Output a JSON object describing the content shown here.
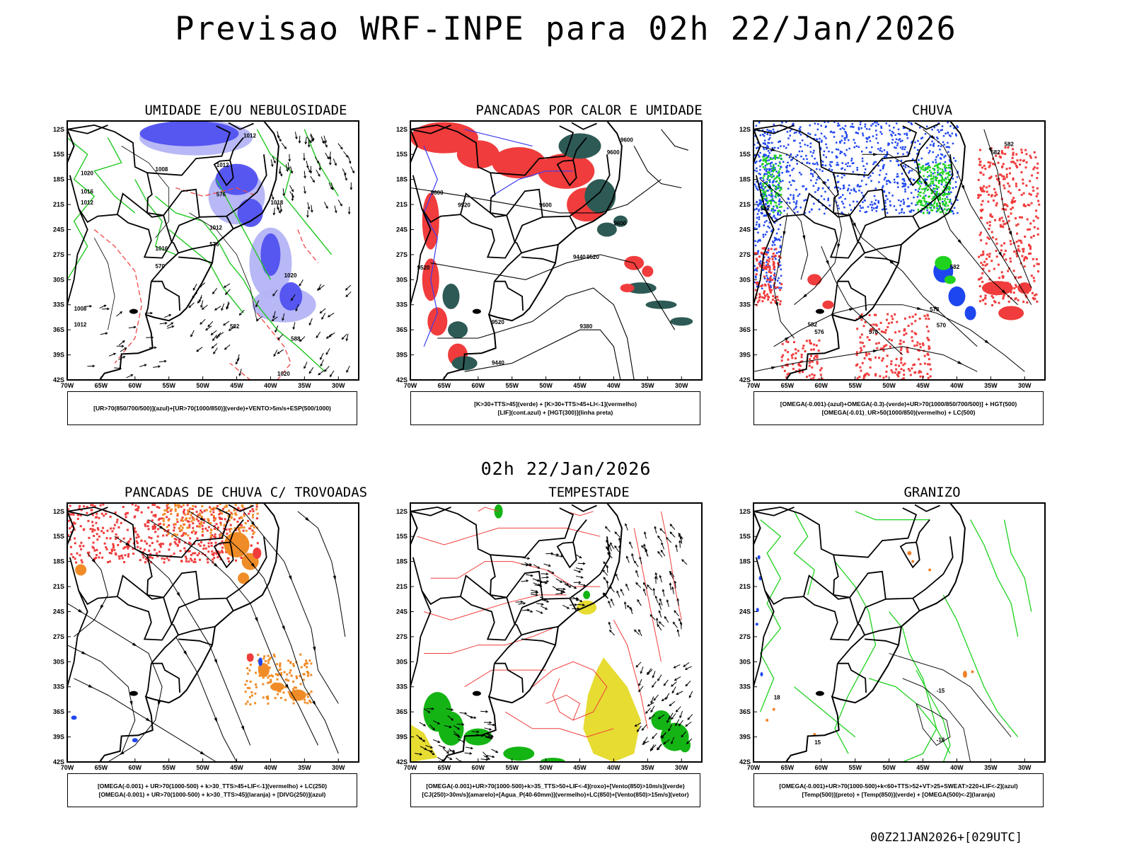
{
  "title": "Previsao WRF-INPE  para 02h 22/Jan/2026",
  "middle_label": "02h 22/Jan/2026",
  "footer": "00Z21JAN2026+[029UTC]",
  "axes": {
    "lat_ticks": [
      "12S",
      "15S",
      "18S",
      "21S",
      "24S",
      "27S",
      "30S",
      "33S",
      "36S",
      "39S",
      "42S"
    ],
    "lon_ticks": [
      "70W",
      "65W",
      "60W",
      "55W",
      "50W",
      "45W",
      "40W",
      "35W",
      "30W"
    ]
  },
  "panels": [
    {
      "title": "UMIDADE E/OU NEBULOSIDADE",
      "legend": [
        "[UR>70(850/700/500)](azul)+[UR>70(1000/850)](verde)+VENTO>5m/s+ESP(500/1000)"
      ],
      "labels": [
        "1012",
        "1008",
        "1012",
        "1020",
        "1016",
        "1012",
        "1012",
        "1018",
        "1016",
        "1020",
        "1008",
        "1012",
        "1020",
        "576",
        "576",
        "570",
        "582",
        "588"
      ],
      "colors": {
        "fill": "#5050f0",
        "light": "#b4b4f5",
        "contour": "#22c822",
        "dashed": "#f04646"
      }
    },
    {
      "title": "PANCADAS POR CALOR E UMIDADE",
      "legend": [
        "[K>30+TTS>45](verde) + [K>30+TTS>45+LI<-1](vermelho)",
        "[LIF](cont.azul) + [HGT(300)](linha preta)"
      ],
      "labels": [
        "9600",
        "9600",
        "9600",
        "9520",
        "9600",
        "9600",
        "9520",
        "9520",
        "9440",
        "9520",
        "9440",
        "9380"
      ],
      "colors": {
        "red": "#f03c3c",
        "teal": "#2d5a55",
        "blue": "#3c3cf0"
      }
    },
    {
      "title": "CHUVA",
      "legend": [
        "[OMEGA(-0.001)-(azul)+OMEGA(-0.3)-(verde)+UR>70(1000/850/700/500)] + HGT(500)",
        "[OMEGA(-0.01)_UR>50(1000/850)(vermelho) + LC(500)"
      ],
      "labels": [
        "582",
        "582",
        "582",
        "582",
        "582",
        "576",
        "576",
        "573",
        "570"
      ],
      "colors": {
        "blue": "#1e46f0",
        "green": "#1ed21e",
        "red": "#f03c3c"
      }
    },
    {
      "title": "PANCADAS DE CHUVA C/ TROVOADAS",
      "legend": [
        "[OMEGA(-0.001) + UR>70(1000-500) + k>30_TTS>45+LIF<-1](vermelho) + LC(250)",
        "[OMEGA(-0.001) + UR>70(1000-500) + k>30_TTS>45](laranja) + [DIVG(250)](azul)"
      ],
      "labels": [],
      "colors": {
        "red": "#f03c3c",
        "orange": "#f08c28",
        "blue": "#1e46f0"
      }
    },
    {
      "title": "TEMPESTADE",
      "legend": [
        "[OMEGA(-0.001)+UR>70(1000-500)+k>35_TTS>50+LIF<-4](roxo)+[Vento(850)>10m/s](verde)",
        "[CJ(250)>30m/s](amarelo)+[Agua_P(40-60mm)](vermelho)+LC(850)+[Vento(850)>15m/s](vetor)"
      ],
      "labels": [],
      "colors": {
        "green": "#14b414",
        "yellow": "#e6dc32",
        "red": "#f03c3c"
      }
    },
    {
      "title": "GRANIZO",
      "legend": [
        "[OMEGA(-0.001)+UR>70(1000-500)+k<60+TTS>52+VT>25+SWEAT>220+LIF<-2](azul)",
        "[Temp(500)](preto) + [Temp(850)](verde) + [OMEGA(500)<-2](laranja)"
      ],
      "labels": [
        "-15",
        "-18",
        "15",
        "18"
      ],
      "colors": {
        "green": "#1ed21e",
        "orange": "#f08228",
        "blue": "#1e46f0"
      }
    }
  ]
}
